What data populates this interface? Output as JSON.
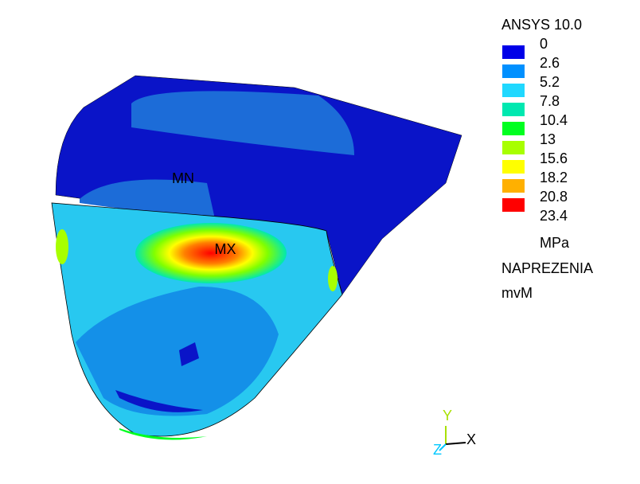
{
  "header": {
    "title": "ANSYS 10.0"
  },
  "legend": {
    "levels": [
      0,
      2.6,
      5.2,
      7.8,
      10.4,
      13,
      15.6,
      18.2,
      20.8,
      23.4
    ],
    "colors": [
      "#0000e8",
      "#0090ff",
      "#20d8ff",
      "#00e8b0",
      "#00ff20",
      "#a8ff00",
      "#ffff00",
      "#ffb000",
      "#ff0000"
    ],
    "unit": "MPa",
    "quantity": "NAPREZENIA",
    "method": "mvM"
  },
  "markers": {
    "min": "MN",
    "max": "MX"
  },
  "triad": {
    "y": "Y",
    "x": "X",
    "z": "Z"
  }
}
